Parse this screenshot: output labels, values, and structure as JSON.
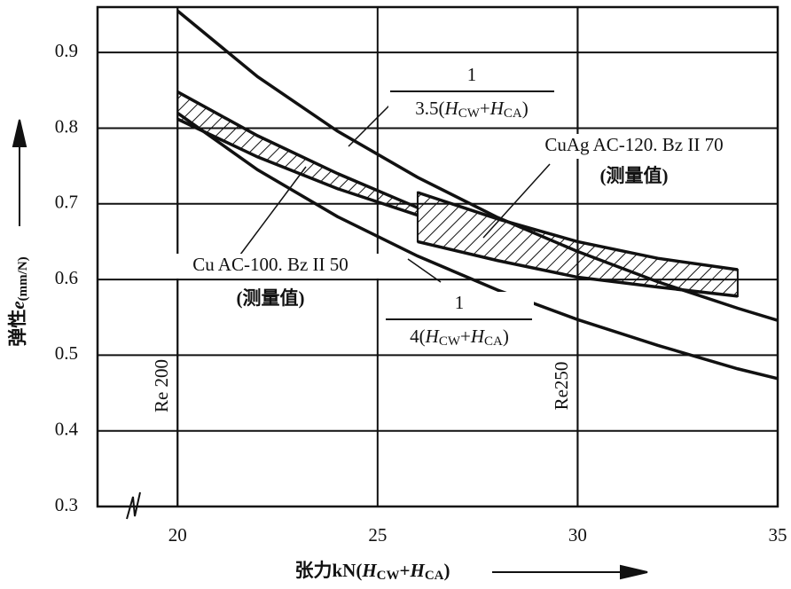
{
  "chart_data": {
    "type": "line",
    "xlim": [
      18,
      35
    ],
    "ylim": [
      0.3,
      0.96
    ],
    "xticks": [
      20,
      25,
      30,
      35
    ],
    "yticks": [
      0.3,
      0.4,
      0.5,
      0.6,
      0.7,
      0.8,
      0.9
    ],
    "grid": true,
    "color": "#111111",
    "x_label": [
      "张力kN(",
      "H",
      "CW",
      "+",
      "H",
      "CA",
      ")"
    ],
    "y_label": [
      "弹性",
      "e",
      "(mm/N)"
    ],
    "reference_lines": [
      {
        "x": 20,
        "label": "Re 200"
      },
      {
        "x": 30,
        "label": "Re250"
      }
    ],
    "curves": [
      {
        "numerator": "1",
        "denominator": [
          "3.5(",
          "H",
          "CW",
          "+",
          "H",
          "CA",
          ")"
        ],
        "x": [
          20,
          22,
          24,
          26,
          28,
          30,
          32,
          34,
          35
        ],
        "values": [
          0.955,
          0.868,
          0.796,
          0.735,
          0.682,
          0.637,
          0.597,
          0.562,
          0.546
        ]
      },
      {
        "numerator": "1",
        "denominator": [
          "4(",
          "H",
          "CW",
          "+",
          "H",
          "CA",
          ")"
        ],
        "x": [
          20,
          22,
          24,
          26,
          28,
          30,
          32,
          34,
          35
        ],
        "values": [
          0.82,
          0.745,
          0.683,
          0.631,
          0.586,
          0.547,
          0.513,
          0.482,
          0.469
        ]
      }
    ],
    "bands": [
      {
        "label": "Cu AC-100. Bz II 50",
        "note": "(测量值)",
        "x": [
          20,
          22,
          24,
          26
        ],
        "upper": [
          0.848,
          0.79,
          0.74,
          0.695
        ],
        "lower": [
          0.812,
          0.762,
          0.72,
          0.685
        ]
      },
      {
        "label": "CuAg AC-120. Bz II 70",
        "note": "(测量值)",
        "x": [
          26,
          28,
          30,
          32,
          34
        ],
        "upper": [
          0.715,
          0.68,
          0.65,
          0.628,
          0.613
        ],
        "lower": [
          0.65,
          0.625,
          0.603,
          0.59,
          0.578
        ]
      }
    ]
  }
}
